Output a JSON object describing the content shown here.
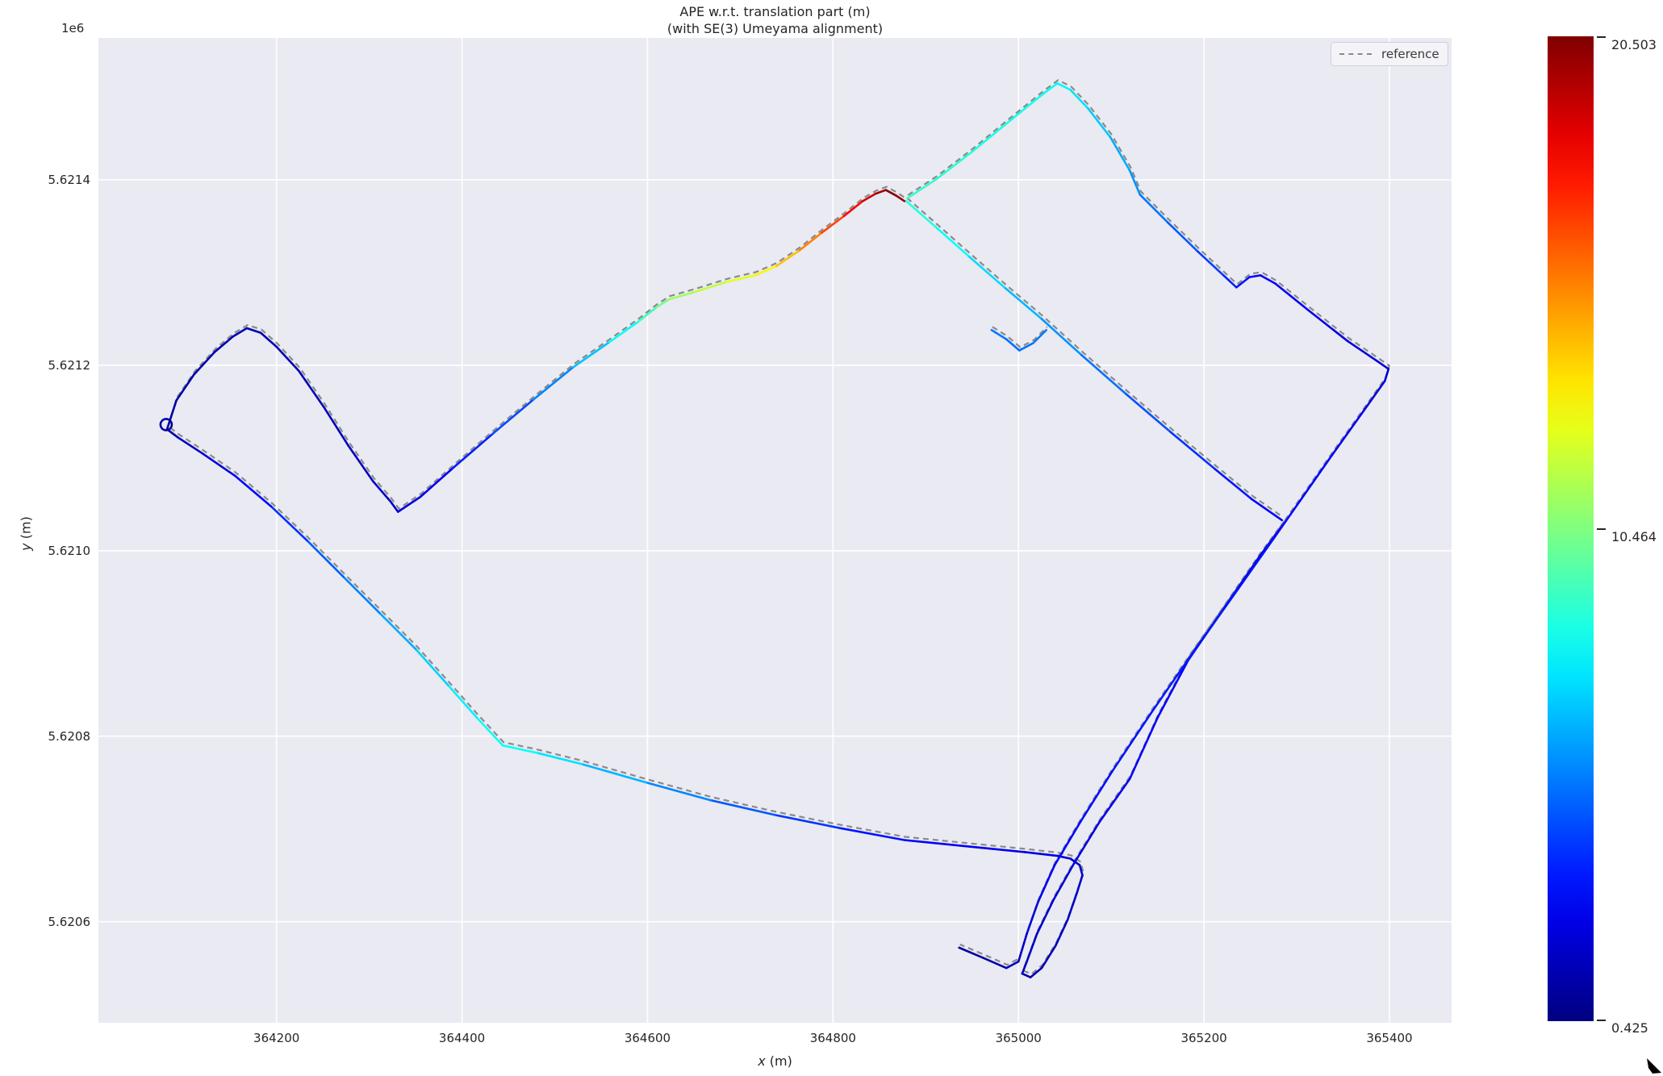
{
  "title": {
    "line1": "APE w.r.t. translation part (m)",
    "line2": "(with SE(3) Umeyama alignment)"
  },
  "axes": {
    "xlabel_var": "x",
    "xlabel_unit": " (m)",
    "ylabel_var": "y",
    "ylabel_unit": " (m)",
    "offset_label": "1e6",
    "x_ticks": [
      {
        "label": "364200",
        "value": 364200
      },
      {
        "label": "364400",
        "value": 364400
      },
      {
        "label": "364600",
        "value": 364600
      },
      {
        "label": "364800",
        "value": 364800
      },
      {
        "label": "365000",
        "value": 365000
      },
      {
        "label": "365200",
        "value": 365200
      },
      {
        "label": "365400",
        "value": 365400
      }
    ],
    "y_ticks": [
      {
        "label": "5.6214",
        "value": 5621400
      },
      {
        "label": "5.6212",
        "value": 5621200
      },
      {
        "label": "5.6210",
        "value": 5621000
      },
      {
        "label": "5.6208",
        "value": 5620800
      },
      {
        "label": "5.6206",
        "value": 5620600
      }
    ]
  },
  "legend": {
    "label": "reference"
  },
  "colorbar": {
    "label_max": "20.503",
    "label_mid": "10.464",
    "label_min": "0.425",
    "vmin": 0.425,
    "vmax": 20.503,
    "colormap": "jet"
  },
  "chart_data": {
    "type": "line",
    "title": "APE w.r.t. translation part (m) (with SE(3) Umeyama alignment)",
    "xlabel": "x (m)",
    "ylabel": "y (m)",
    "xlim": [
      364008,
      365467
    ],
    "ylim": [
      5620491,
      5621553
    ],
    "grid": true,
    "legend_entries": [
      "reference"
    ],
    "series_note": "estimate trajectory colored by APE value (jet, vmin=0.425, vmax=20.503); reference trajectory is the same path drawn as a gray dashed line",
    "error_min": 0.425,
    "error_mid": 10.464,
    "error_max": 20.503,
    "loop_marker": {
      "x": 364081,
      "y": 5621136,
      "radius_px": 7,
      "e": 1.1
    },
    "estimate_strands": [
      [
        [
          364971,
          5621238,
          5.5
        ],
        [
          364987,
          5621228,
          5.2
        ],
        [
          365001,
          5621216,
          5.0
        ],
        [
          365016,
          5621224,
          5.2
        ],
        [
          365030,
          5621238,
          5.5
        ]
      ],
      [
        [
          364879,
          5621377,
          9.0
        ],
        [
          364912,
          5621348,
          8.3
        ],
        [
          364947,
          5621317,
          7.6
        ],
        [
          364986,
          5621283,
          6.9
        ],
        [
          365025,
          5621250,
          6.2
        ],
        [
          365068,
          5621211,
          5.5
        ],
        [
          365116,
          5621169,
          4.8
        ],
        [
          365164,
          5621128,
          4.2
        ],
        [
          365212,
          5621088,
          3.6
        ],
        [
          365251,
          5621056,
          3.1
        ],
        [
          365284,
          5621033,
          2.8
        ]
      ],
      [
        [
          365286,
          5621029,
          2.6
        ],
        [
          365260,
          5620994,
          2.5
        ],
        [
          365225,
          5620943,
          2.7
        ],
        [
          365183,
          5620882,
          2.9
        ],
        [
          365150,
          5620820,
          2.9
        ],
        [
          365120,
          5620754,
          2.8
        ],
        [
          365087,
          5620707,
          2.5
        ],
        [
          365060,
          5620663,
          2.3
        ],
        [
          365038,
          5620624,
          2.1
        ],
        [
          365020,
          5620587,
          1.9
        ],
        [
          365009,
          5620557,
          1.6
        ],
        [
          365004,
          5620544,
          1.4
        ],
        [
          365013,
          5620540,
          1.4
        ],
        [
          365025,
          5620550,
          1.5
        ],
        [
          365040,
          5620574,
          1.6
        ],
        [
          365053,
          5620602,
          1.8
        ],
        [
          365063,
          5620631,
          1.9
        ],
        [
          365069,
          5620650,
          2.0
        ],
        [
          365066,
          5620661,
          2.0
        ],
        [
          365056,
          5620668,
          2.1
        ],
        [
          365042,
          5620671,
          2.2
        ],
        [
          365007,
          5620675,
          2.4
        ],
        [
          364947,
          5620681,
          2.7
        ],
        [
          364877,
          5620688,
          3.0
        ],
        [
          364807,
          5620701,
          3.6
        ],
        [
          364738,
          5620715,
          4.3
        ],
        [
          364668,
          5620731,
          5.1
        ],
        [
          364599,
          5620750,
          6.0
        ],
        [
          364529,
          5620770,
          7.0
        ],
        [
          364481,
          5620782,
          7.8
        ],
        [
          364444,
          5620790,
          8.4
        ],
        [
          364416,
          5620820,
          8.0
        ],
        [
          364385,
          5620855,
          7.4
        ],
        [
          364350,
          5620894,
          6.7
        ],
        [
          364311,
          5620933,
          5.9
        ],
        [
          364272,
          5620972,
          5.1
        ],
        [
          364233,
          5621011,
          4.3
        ],
        [
          364194,
          5621048,
          3.5
        ],
        [
          364155,
          5621081,
          2.7
        ],
        [
          364120,
          5621105,
          2.0
        ],
        [
          364094,
          5621122,
          1.5
        ],
        [
          364082,
          5621131,
          1.2
        ],
        [
          364092,
          5621162,
          1.2
        ],
        [
          364111,
          5621190,
          1.3
        ],
        [
          364133,
          5621214,
          1.4
        ],
        [
          364153,
          5621231,
          1.5
        ],
        [
          364168,
          5621240,
          1.5
        ],
        [
          364183,
          5621235,
          1.5
        ],
        [
          364200,
          5621220,
          1.5
        ],
        [
          364224,
          5621194,
          1.5
        ],
        [
          364251,
          5621155,
          1.6
        ],
        [
          364277,
          5621114,
          1.7
        ],
        [
          364304,
          5621075,
          1.8
        ],
        [
          364323,
          5621053,
          1.9
        ],
        [
          364331,
          5621042,
          2.0
        ],
        [
          364355,
          5621058,
          2.4
        ],
        [
          364390,
          5621089,
          3.1
        ],
        [
          364433,
          5621126,
          3.9
        ],
        [
          364477,
          5621163,
          4.9
        ],
        [
          364520,
          5621198,
          6.1
        ],
        [
          364559,
          5621225,
          7.4
        ],
        [
          364590,
          5621247,
          8.7
        ],
        [
          364609,
          5621262,
          9.7
        ],
        [
          364623,
          5621271,
          10.7
        ],
        [
          364651,
          5621279,
          11.4
        ],
        [
          364686,
          5621290,
          12.1
        ],
        [
          364716,
          5621297,
          12.8
        ],
        [
          364739,
          5621307,
          13.6
        ],
        [
          364764,
          5621324,
          14.8
        ],
        [
          364788,
          5621343,
          16.0
        ],
        [
          364812,
          5621361,
          17.3
        ],
        [
          364832,
          5621377,
          18.5
        ],
        [
          364846,
          5621385,
          19.5
        ],
        [
          364857,
          5621389,
          20.3
        ],
        [
          364868,
          5621383,
          20.5
        ],
        [
          364877,
          5621377,
          19.8
        ]
      ],
      [
        [
          364880,
          5621380,
          9.0
        ],
        [
          364912,
          5621401,
          8.8
        ],
        [
          364951,
          5621431,
          8.6
        ],
        [
          364990,
          5621463,
          8.4
        ],
        [
          365027,
          5621493,
          8.2
        ],
        [
          365042,
          5621504,
          8.0
        ],
        [
          365056,
          5621497,
          7.6
        ],
        [
          365075,
          5621477,
          7.2
        ],
        [
          365099,
          5621446,
          6.6
        ],
        [
          365120,
          5621410,
          6.0
        ],
        [
          365131,
          5621384,
          5.6
        ],
        [
          365161,
          5621354,
          5.0
        ],
        [
          365193,
          5621323,
          4.4
        ],
        [
          365221,
          5621297,
          3.8
        ],
        [
          365235,
          5621284,
          3.4
        ],
        [
          365249,
          5621295,
          3.2
        ],
        [
          365261,
          5621297,
          3.0
        ],
        [
          365277,
          5621288,
          2.9
        ],
        [
          365313,
          5621259,
          2.6
        ],
        [
          365355,
          5621226,
          2.3
        ],
        [
          365386,
          5621205,
          2.1
        ],
        [
          365399,
          5621196,
          2.0
        ],
        [
          365395,
          5621183,
          2.2
        ],
        [
          365373,
          5621152,
          2.5
        ],
        [
          365338,
          5621103,
          2.8
        ],
        [
          365303,
          5621053,
          3.0
        ],
        [
          365275,
          5621013,
          3.2
        ],
        [
          365237,
          5620959,
          3.3
        ],
        [
          365190,
          5620893,
          3.4
        ],
        [
          365143,
          5620825,
          3.4
        ],
        [
          365101,
          5620762,
          3.3
        ],
        [
          365067,
          5620708,
          3.1
        ],
        [
          365039,
          5620661,
          2.8
        ],
        [
          365021,
          5620621,
          2.4
        ],
        [
          365009,
          5620587,
          2.0
        ],
        [
          365000,
          5620557,
          1.7
        ],
        [
          364987,
          5620550,
          1.4
        ],
        [
          364962,
          5620561,
          1.2
        ],
        [
          364936,
          5620572,
          1.0
        ]
      ]
    ]
  }
}
